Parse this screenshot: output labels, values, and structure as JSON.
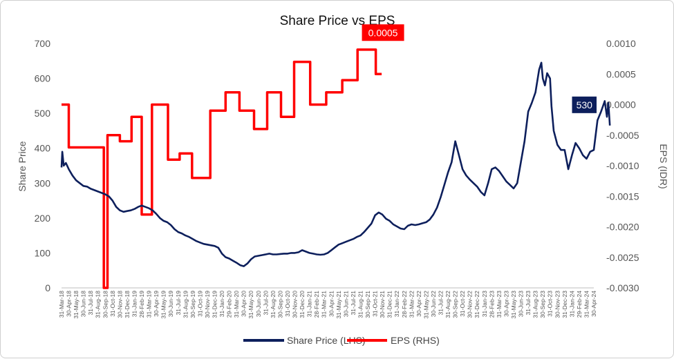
{
  "chart_data": {
    "type": "line",
    "title": "Share Price vs EPS",
    "ylabel_left": "Share Price",
    "ylabel_right": "EPS (IDR)",
    "ylim_left": [
      0,
      700
    ],
    "ylim_right": [
      -0.003,
      0.001
    ],
    "yticks_left": [
      "0",
      "100",
      "200",
      "300",
      "400",
      "500",
      "600",
      "700"
    ],
    "yticks_right": [
      "-0.0030",
      "-0.0025",
      "-0.0020",
      "-0.0015",
      "-0.0010",
      "-0.0005",
      "0.0000",
      "0.0005",
      "0.0010"
    ],
    "x_ticks": [
      "31-Mar-18",
      "30-Apr-18",
      "31-May-18",
      "30-Jun-18",
      "31-Jul-18",
      "31-Aug-18",
      "30-Sep-18",
      "31-Oct-18",
      "30-Nov-18",
      "31-Dec-18",
      "31-Jan-19",
      "28-Feb-19",
      "31-Mar-19",
      "30-Apr-19",
      "31-May-19",
      "30-Jun-19",
      "31-Jul-19",
      "31-Aug-19",
      "30-Sep-19",
      "31-Oct-19",
      "30-Nov-19",
      "31-Dec-19",
      "31-Jan-20",
      "29-Feb-20",
      "31-Mar-20",
      "30-Apr-20",
      "31-May-20",
      "30-Jun-20",
      "31-Jul-20",
      "31-Aug-20",
      "30-Sep-20",
      "31-Oct-20",
      "30-Nov-20",
      "31-Dec-20",
      "31-Jan-21",
      "28-Feb-21",
      "31-Mar-21",
      "30-Apr-21",
      "31-May-21",
      "30-Jun-21",
      "31-Jul-21",
      "31-Aug-21",
      "30-Sep-21",
      "31-Oct-21",
      "30-Nov-21",
      "31-Dec-21",
      "31-Jan-22",
      "28-Feb-22",
      "31-Mar-22",
      "30-Apr-22",
      "31-May-22",
      "30-Jun-22",
      "31-Jul-22",
      "31-Aug-22",
      "30-Sep-22",
      "31-Oct-22",
      "30-Nov-22",
      "31-Dec-22",
      "31-Jan-23",
      "28-Feb-23",
      "31-Mar-23",
      "30-Apr-23",
      "31-May-23",
      "30-Jun-23",
      "31-Jul-23",
      "31-Aug-23",
      "30-Sep-23",
      "31-Oct-23",
      "30-Nov-23",
      "31-Dec-23",
      "31-Jan-24",
      "29-Feb-24",
      "31-Mar-24",
      "30-Apr-24"
    ],
    "series": [
      {
        "name": "Share Price (LHS)",
        "axis": "left",
        "color": "#0d1f5c",
        "points": [
          [
            0,
            345
          ],
          [
            0.1,
            390
          ],
          [
            0.3,
            350
          ],
          [
            0.6,
            358
          ],
          [
            1,
            340
          ],
          [
            1.5,
            322
          ],
          [
            2,
            308
          ],
          [
            2.5,
            300
          ],
          [
            3,
            292
          ],
          [
            3.5,
            290
          ],
          [
            4,
            284
          ],
          [
            4.5,
            280
          ],
          [
            5,
            276
          ],
          [
            5.5,
            272
          ],
          [
            6,
            268
          ],
          [
            6.5,
            262
          ],
          [
            7,
            250
          ],
          [
            7.5,
            232
          ],
          [
            8,
            222
          ],
          [
            8.5,
            218
          ],
          [
            9,
            220
          ],
          [
            9.5,
            222
          ],
          [
            10,
            226
          ],
          [
            10.5,
            232
          ],
          [
            11,
            236
          ],
          [
            11.5,
            232
          ],
          [
            12,
            228
          ],
          [
            12.5,
            222
          ],
          [
            13,
            212
          ],
          [
            13.5,
            200
          ],
          [
            14,
            192
          ],
          [
            14.5,
            188
          ],
          [
            15,
            180
          ],
          [
            15.5,
            168
          ],
          [
            16,
            160
          ],
          [
            16.5,
            156
          ],
          [
            17,
            150
          ],
          [
            17.5,
            146
          ],
          [
            18,
            140
          ],
          [
            18.5,
            134
          ],
          [
            19,
            130
          ],
          [
            19.5,
            126
          ],
          [
            20,
            124
          ],
          [
            20.5,
            122
          ],
          [
            21,
            120
          ],
          [
            21.5,
            115
          ],
          [
            22,
            98
          ],
          [
            22.5,
            88
          ],
          [
            23,
            84
          ],
          [
            23.5,
            78
          ],
          [
            24,
            72
          ],
          [
            24.5,
            65
          ],
          [
            25,
            62
          ],
          [
            25.5,
            70
          ],
          [
            26,
            82
          ],
          [
            26.5,
            90
          ],
          [
            27,
            92
          ],
          [
            27.5,
            94
          ],
          [
            28,
            96
          ],
          [
            28.5,
            98
          ],
          [
            29,
            96
          ],
          [
            29.5,
            96
          ],
          [
            30,
            97
          ],
          [
            30.5,
            98
          ],
          [
            31,
            98
          ],
          [
            31.5,
            100
          ],
          [
            32,
            100
          ],
          [
            32.5,
            102
          ],
          [
            33,
            108
          ],
          [
            33.5,
            104
          ],
          [
            34,
            100
          ],
          [
            34.5,
            98
          ],
          [
            35,
            96
          ],
          [
            35.5,
            95
          ],
          [
            36,
            96
          ],
          [
            36.5,
            100
          ],
          [
            37,
            108
          ],
          [
            37.5,
            116
          ],
          [
            38,
            124
          ],
          [
            38.5,
            128
          ],
          [
            39,
            132
          ],
          [
            39.5,
            136
          ],
          [
            40,
            140
          ],
          [
            40.5,
            146
          ],
          [
            41,
            150
          ],
          [
            41.5,
            160
          ],
          [
            42,
            172
          ],
          [
            42.5,
            184
          ],
          [
            43,
            208
          ],
          [
            43.5,
            216
          ],
          [
            44,
            210
          ],
          [
            44.5,
            198
          ],
          [
            45,
            192
          ],
          [
            45.5,
            182
          ],
          [
            46,
            176
          ],
          [
            46.5,
            170
          ],
          [
            47,
            168
          ],
          [
            47.5,
            178
          ],
          [
            48,
            182
          ],
          [
            48.5,
            180
          ],
          [
            49,
            182
          ],
          [
            49.5,
            185
          ],
          [
            50,
            188
          ],
          [
            50.5,
            196
          ],
          [
            51,
            210
          ],
          [
            51.5,
            230
          ],
          [
            52,
            260
          ],
          [
            52.5,
            295
          ],
          [
            53,
            330
          ],
          [
            53.5,
            360
          ],
          [
            54,
            420
          ],
          [
            54.5,
            380
          ],
          [
            55,
            340
          ],
          [
            55.5,
            322
          ],
          [
            56,
            310
          ],
          [
            56.5,
            300
          ],
          [
            57,
            290
          ],
          [
            57.5,
            275
          ],
          [
            58,
            265
          ],
          [
            58.5,
            300
          ],
          [
            59,
            340
          ],
          [
            59.5,
            345
          ],
          [
            60,
            335
          ],
          [
            60.5,
            320
          ],
          [
            61,
            305
          ],
          [
            61.5,
            295
          ],
          [
            62,
            285
          ],
          [
            62.5,
            300
          ],
          [
            63,
            360
          ],
          [
            63.5,
            420
          ],
          [
            64,
            505
          ],
          [
            64.5,
            530
          ],
          [
            65,
            560
          ],
          [
            65.5,
            625
          ],
          [
            65.8,
            645
          ],
          [
            66,
            600
          ],
          [
            66.3,
            580
          ],
          [
            66.6,
            615
          ],
          [
            67,
            600
          ],
          [
            67.2,
            520
          ],
          [
            67.5,
            450
          ],
          [
            68,
            410
          ],
          [
            68.5,
            395
          ],
          [
            69,
            395
          ],
          [
            69.5,
            340
          ],
          [
            70,
            380
          ],
          [
            70.5,
            415
          ],
          [
            71,
            400
          ],
          [
            71.5,
            380
          ],
          [
            72,
            370
          ],
          [
            72.5,
            390
          ],
          [
            73,
            395
          ],
          [
            73.5,
            480
          ],
          [
            74,
            505
          ],
          [
            74.5,
            535
          ],
          [
            74.8,
            490
          ],
          [
            75,
            530
          ],
          [
            75.2,
            465
          ]
        ]
      },
      {
        "name": "EPS (RHS)",
        "axis": "right",
        "color": "#ff0000",
        "points": [
          [
            0,
            0.0
          ],
          [
            1,
            0.0
          ],
          [
            1,
            -0.0007
          ],
          [
            3,
            -0.0007
          ],
          [
            3,
            -0.0007
          ],
          [
            5.8,
            -0.0007
          ],
          [
            5.8,
            -0.003
          ],
          [
            6.3,
            -0.003
          ],
          [
            6.3,
            -0.0005
          ],
          [
            8,
            -0.0005
          ],
          [
            8,
            -0.0006
          ],
          [
            9.6,
            -0.0006
          ],
          [
            9.6,
            -0.0002
          ],
          [
            11,
            -0.0002
          ],
          [
            11,
            -0.0018
          ],
          [
            12.4,
            -0.0018
          ],
          [
            12.4,
            0.0
          ],
          [
            14.6,
            0.0
          ],
          [
            14.6,
            -0.0009
          ],
          [
            16.2,
            -0.0009
          ],
          [
            16.2,
            -0.0008
          ],
          [
            17.9,
            -0.0008
          ],
          [
            17.9,
            -0.0012
          ],
          [
            20.4,
            -0.0012
          ],
          [
            20.4,
            -0.0001
          ],
          [
            22.5,
            -0.0001
          ],
          [
            22.5,
            0.0002
          ],
          [
            24.4,
            0.0002
          ],
          [
            24.4,
            -0.0001
          ],
          [
            26.4,
            -0.0001
          ],
          [
            26.4,
            -0.0004
          ],
          [
            28.2,
            -0.0004
          ],
          [
            28.2,
            0.0002
          ],
          [
            30.1,
            0.0002
          ],
          [
            30.1,
            -0.0002
          ],
          [
            31.9,
            -0.0002
          ],
          [
            31.9,
            0.0007
          ],
          [
            34.1,
            0.0007
          ],
          [
            34.1,
            0.0
          ],
          [
            36.3,
            0.0
          ],
          [
            36.3,
            0.0002
          ],
          [
            38.5,
            0.0002
          ],
          [
            38.5,
            0.0004
          ],
          [
            40.6,
            0.0004
          ],
          [
            40.6,
            0.0009
          ],
          [
            43.1,
            0.0009
          ],
          [
            43.1,
            0.0005
          ],
          [
            43.9,
            0.0005
          ]
        ]
      }
    ],
    "annotations": [
      {
        "text": "0.0005",
        "series": "EPS (RHS)",
        "color": "#ff0000"
      },
      {
        "text": "530",
        "series": "Share Price (LHS)",
        "color": "#0d1f5c"
      }
    ]
  }
}
